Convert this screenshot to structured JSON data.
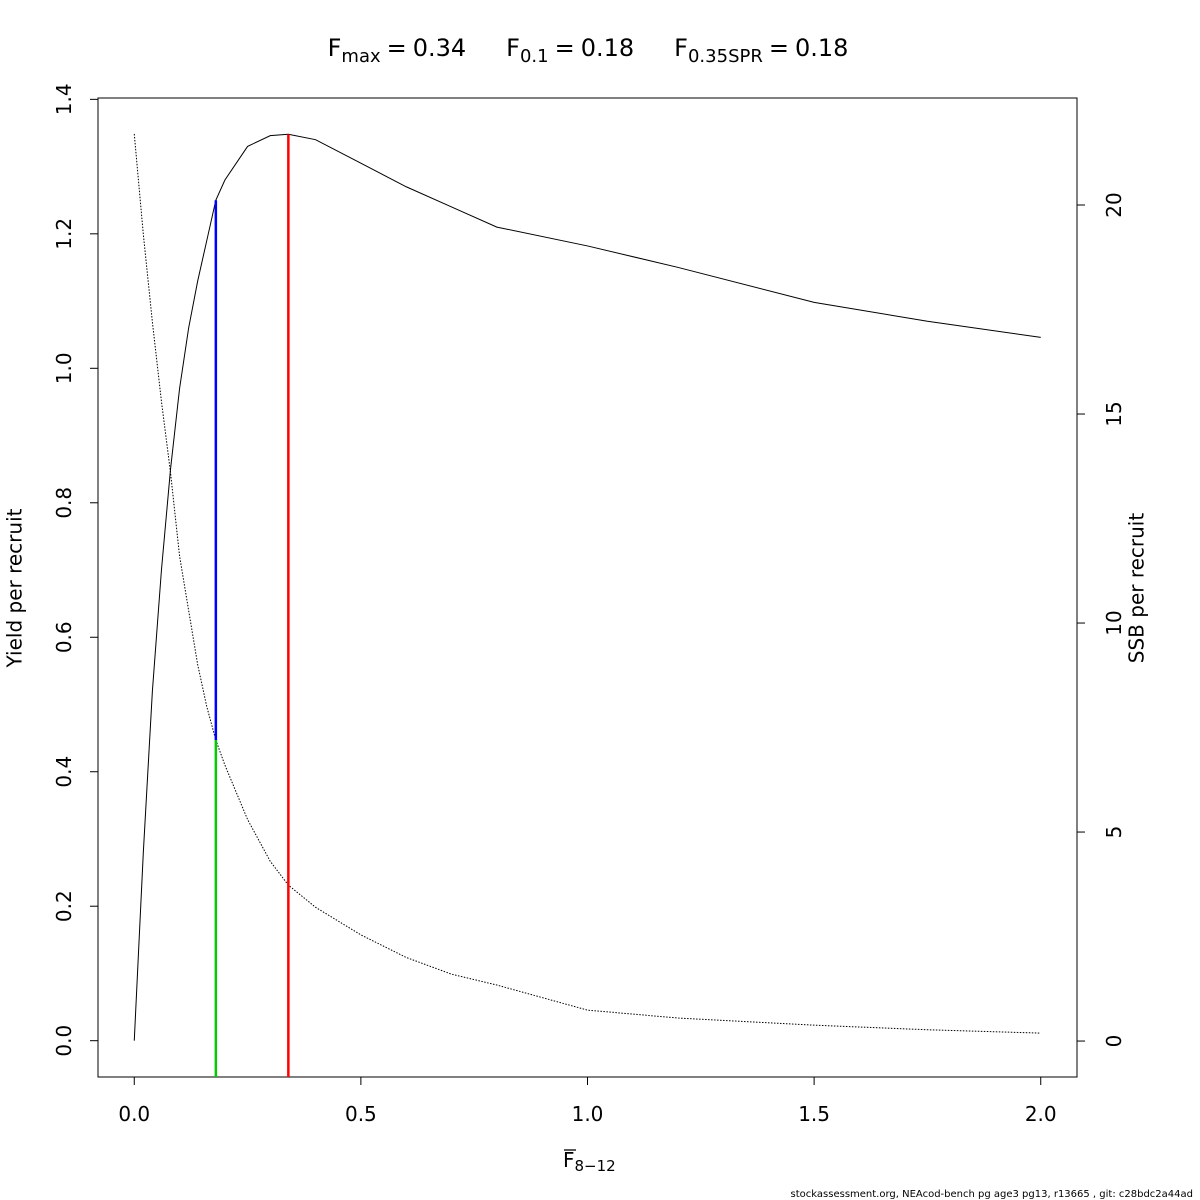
{
  "chart_data": {
    "type": "line",
    "title_items": [
      {
        "symbol": "F",
        "subscript": "max",
        "sign": "=",
        "value": 0.34
      },
      {
        "symbol": "F",
        "subscript": "0.1",
        "sign": "=",
        "value": 0.18
      },
      {
        "symbol": "F",
        "subscript": "0.35SPR",
        "sign": "=",
        "value": 0.18
      }
    ],
    "xlabel": {
      "symbol": "F",
      "subscript": "8−12"
    },
    "ylabel": "Yield per recruit",
    "y2label": "SSB per recruit",
    "footer": "stockassessment.org, NEAcod-bench pg age3 pg13, r13665 , git: c28bdc2a44ad",
    "x": [
      0,
      0.02,
      0.04,
      0.06,
      0.08,
      0.1,
      0.12,
      0.14,
      0.16,
      0.18,
      0.2,
      0.25,
      0.3,
      0.34,
      0.4,
      0.5,
      0.6,
      0.7,
      0.8,
      1.0,
      1.2,
      1.5,
      1.75,
      2.0
    ],
    "series": [
      {
        "color": "#000000",
        "linestyle": "solid",
        "values": [
          0,
          0.28,
          0.52,
          0.7,
          0.85,
          0.97,
          1.06,
          1.13,
          1.19,
          1.25,
          1.28,
          1.33,
          1.346,
          1.348,
          1.34,
          1.305,
          1.27,
          1.24,
          1.21,
          1.182,
          1.15,
          1.098,
          1.07,
          1.046
        ]
      },
      {
        "color": "#000000",
        "linestyle": "dotted",
        "axis": "y2",
        "values": [
          21.7,
          19.3,
          17.2,
          15.3,
          13.6,
          11.6,
          10.3,
          9.0,
          8.0,
          7.2,
          6.6,
          5.3,
          4.3,
          3.73,
          3.2,
          2.54,
          2.0,
          1.6,
          1.34,
          0.74,
          0.55,
          0.38,
          0.27,
          0.19
        ]
      }
    ],
    "markers": [
      {
        "x": 0.34,
        "color": "#ff0000",
        "y": 1.348
      },
      {
        "x": 0.18,
        "color": "#0000ff",
        "y": 1.25,
        "y2": 7.2
      },
      {
        "x": 0.18,
        "color": "#00cd00",
        "y2": 7.2
      }
    ],
    "xlim": [
      -0.08,
      2.08
    ],
    "xticks": [
      {
        "value": 0,
        "label": "0.0"
      },
      0.5,
      {
        "value": 1,
        "label": "1.0"
      },
      1.5,
      {
        "value": 2,
        "label": "2.0"
      }
    ],
    "ylim": [
      -0.054,
      1.402
    ],
    "yticks": [
      {
        "value": 0,
        "label": "0.0"
      },
      0.2,
      0.4,
      0.6,
      0.8,
      {
        "value": 1,
        "label": "1.0"
      },
      1.2,
      1.4
    ],
    "y2lim": [
      -0.86,
      22.56
    ],
    "y2ticks": [
      0,
      5,
      10,
      15,
      20
    ]
  }
}
